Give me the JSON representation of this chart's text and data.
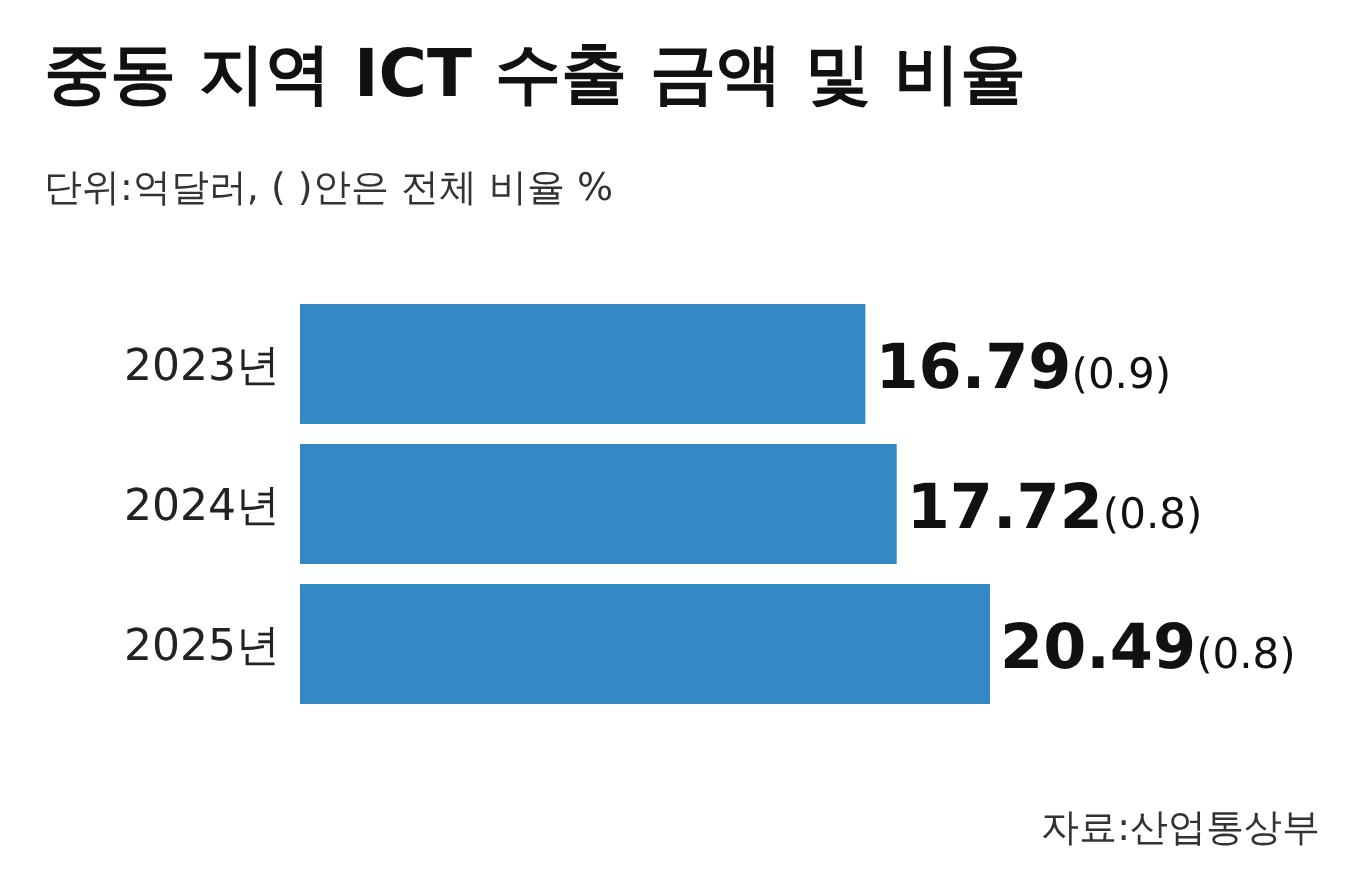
{
  "chart_data": {
    "type": "bar",
    "orientation": "horizontal",
    "title": "중동 지역 ICT 수출 금액 및 비율",
    "subtitle": "단위:억달러, (  )안은 전체 비율 %",
    "categories": [
      "2023년",
      "2024년",
      "2025년"
    ],
    "values": [
      16.79,
      17.72,
      20.49
    ],
    "value_labels": [
      "16.79(0.9)",
      "17.72(0.8)",
      "20.49(0.8)"
    ],
    "color": "#3489c4",
    "annotations": [
      "자료:산업통상부"
    ]
  }
}
